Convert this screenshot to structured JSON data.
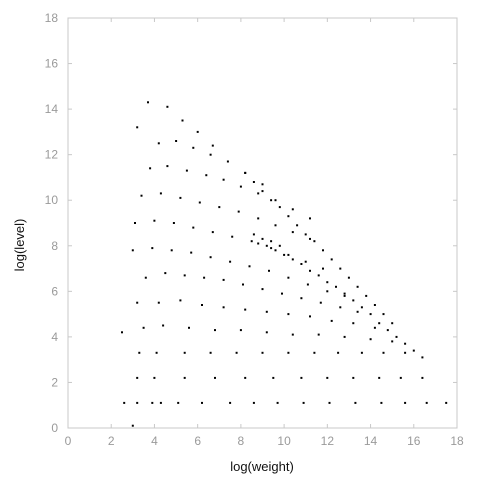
{
  "chart_data": {
    "type": "scatter",
    "title": "",
    "xlabel": "log(weight)",
    "ylabel": "log(level)",
    "xlim": [
      0,
      18
    ],
    "ylim": [
      0,
      18
    ],
    "x_ticks": [
      "0",
      "2",
      "4",
      "6",
      "8",
      "10",
      "12",
      "14",
      "16",
      "18"
    ],
    "y_ticks": [
      "0",
      "2",
      "4",
      "6",
      "8",
      "10",
      "12",
      "14",
      "16",
      "18"
    ],
    "grid": false,
    "legend": "none",
    "series": [
      {
        "points": [
          [
            3.0,
            0.1
          ],
          [
            2.6,
            1.1
          ],
          [
            3.2,
            1.1
          ],
          [
            3.9,
            1.1
          ],
          [
            4.3,
            1.1
          ],
          [
            5.1,
            1.1
          ],
          [
            6.2,
            1.1
          ],
          [
            7.5,
            1.1
          ],
          [
            8.6,
            1.1
          ],
          [
            9.7,
            1.1
          ],
          [
            10.9,
            1.1
          ],
          [
            12.1,
            1.1
          ],
          [
            13.3,
            1.1
          ],
          [
            14.5,
            1.1
          ],
          [
            15.6,
            1.1
          ],
          [
            16.6,
            1.1
          ],
          [
            17.5,
            1.1
          ],
          [
            3.2,
            2.2
          ],
          [
            4.0,
            2.2
          ],
          [
            5.4,
            2.2
          ],
          [
            6.8,
            2.2
          ],
          [
            8.2,
            2.2
          ],
          [
            9.5,
            2.2
          ],
          [
            10.8,
            2.2
          ],
          [
            12.0,
            2.2
          ],
          [
            13.2,
            2.2
          ],
          [
            14.4,
            2.2
          ],
          [
            15.4,
            2.2
          ],
          [
            16.4,
            2.2
          ],
          [
            3.3,
            3.3
          ],
          [
            4.1,
            3.3
          ],
          [
            5.4,
            3.3
          ],
          [
            6.6,
            3.3
          ],
          [
            7.8,
            3.3
          ],
          [
            9.0,
            3.3
          ],
          [
            10.2,
            3.3
          ],
          [
            11.4,
            3.3
          ],
          [
            12.5,
            3.3
          ],
          [
            13.6,
            3.3
          ],
          [
            14.6,
            3.3
          ],
          [
            15.6,
            3.3
          ],
          [
            2.5,
            4.2
          ],
          [
            3.5,
            4.4
          ],
          [
            4.4,
            4.5
          ],
          [
            5.6,
            4.4
          ],
          [
            6.8,
            4.3
          ],
          [
            8.0,
            4.3
          ],
          [
            9.2,
            4.2
          ],
          [
            10.4,
            4.1
          ],
          [
            11.6,
            4.1
          ],
          [
            12.8,
            4.0
          ],
          [
            14.0,
            3.9
          ],
          [
            15.0,
            3.8
          ],
          [
            3.2,
            5.5
          ],
          [
            4.2,
            5.5
          ],
          [
            5.2,
            5.6
          ],
          [
            6.2,
            5.4
          ],
          [
            7.2,
            5.3
          ],
          [
            8.2,
            5.2
          ],
          [
            9.2,
            5.1
          ],
          [
            10.2,
            5.0
          ],
          [
            11.2,
            4.9
          ],
          [
            12.2,
            4.7
          ],
          [
            13.2,
            4.6
          ],
          [
            14.2,
            4.4
          ],
          [
            3.6,
            6.6
          ],
          [
            4.5,
            6.8
          ],
          [
            5.4,
            6.7
          ],
          [
            6.3,
            6.6
          ],
          [
            7.2,
            6.5
          ],
          [
            8.1,
            6.3
          ],
          [
            9.0,
            6.1
          ],
          [
            9.9,
            5.9
          ],
          [
            10.8,
            5.7
          ],
          [
            11.7,
            5.5
          ],
          [
            12.6,
            5.3
          ],
          [
            13.4,
            5.1
          ],
          [
            3.0,
            7.8
          ],
          [
            3.9,
            7.9
          ],
          [
            4.8,
            7.8
          ],
          [
            5.7,
            7.7
          ],
          [
            6.6,
            7.5
          ],
          [
            7.5,
            7.3
          ],
          [
            8.4,
            7.1
          ],
          [
            9.3,
            6.9
          ],
          [
            10.2,
            6.6
          ],
          [
            11.1,
            6.3
          ],
          [
            12.0,
            6.0
          ],
          [
            12.8,
            5.8
          ],
          [
            3.1,
            9.0
          ],
          [
            4.0,
            9.1
          ],
          [
            4.9,
            9.0
          ],
          [
            5.8,
            8.8
          ],
          [
            6.7,
            8.6
          ],
          [
            7.6,
            8.4
          ],
          [
            8.5,
            8.2
          ],
          [
            9.4,
            7.9
          ],
          [
            10.2,
            7.6
          ],
          [
            11.0,
            7.3
          ],
          [
            11.8,
            7.0
          ],
          [
            3.4,
            10.2
          ],
          [
            4.3,
            10.3
          ],
          [
            5.2,
            10.1
          ],
          [
            6.1,
            9.9
          ],
          [
            7.0,
            9.7
          ],
          [
            7.9,
            9.5
          ],
          [
            8.8,
            9.2
          ],
          [
            9.6,
            8.9
          ],
          [
            10.4,
            8.6
          ],
          [
            11.2,
            8.3
          ],
          [
            3.8,
            11.4
          ],
          [
            4.6,
            11.5
          ],
          [
            5.5,
            11.3
          ],
          [
            6.4,
            11.1
          ],
          [
            7.2,
            10.9
          ],
          [
            8.0,
            10.6
          ],
          [
            8.8,
            10.3
          ],
          [
            9.6,
            10.0
          ],
          [
            10.4,
            9.6
          ],
          [
            11.2,
            9.2
          ],
          [
            3.2,
            13.2
          ],
          [
            4.2,
            12.5
          ],
          [
            5.0,
            12.6
          ],
          [
            5.8,
            12.3
          ],
          [
            6.6,
            12.0
          ],
          [
            7.4,
            11.7
          ],
          [
            8.2,
            11.2
          ],
          [
            9.0,
            10.7
          ],
          [
            3.7,
            14.3
          ],
          [
            4.6,
            14.1
          ],
          [
            5.3,
            13.5
          ],
          [
            6.0,
            13.0
          ],
          [
            6.7,
            12.4
          ],
          [
            8.8,
            8.1
          ],
          [
            9.2,
            8.0
          ],
          [
            9.6,
            7.8
          ],
          [
            10.0,
            7.6
          ],
          [
            8.6,
            8.5
          ],
          [
            9.0,
            8.3
          ],
          [
            9.4,
            8.2
          ],
          [
            9.8,
            8.0
          ],
          [
            10.4,
            7.4
          ],
          [
            10.8,
            7.2
          ],
          [
            11.2,
            6.9
          ],
          [
            11.6,
            6.7
          ],
          [
            12.0,
            6.4
          ],
          [
            12.4,
            6.2
          ],
          [
            12.8,
            5.9
          ],
          [
            13.2,
            5.6
          ],
          [
            13.6,
            5.3
          ],
          [
            14.0,
            5.0
          ],
          [
            14.4,
            4.6
          ],
          [
            14.8,
            4.3
          ],
          [
            15.2,
            4.0
          ],
          [
            15.6,
            3.7
          ],
          [
            16.0,
            3.4
          ],
          [
            16.4,
            3.1
          ],
          [
            8.2,
            11.2
          ],
          [
            8.6,
            10.8
          ],
          [
            9.0,
            10.4
          ],
          [
            9.4,
            10.0
          ],
          [
            9.8,
            9.7
          ],
          [
            10.2,
            9.3
          ],
          [
            10.6,
            8.9
          ],
          [
            11.0,
            8.5
          ],
          [
            11.4,
            8.2
          ],
          [
            11.8,
            7.8
          ],
          [
            12.2,
            7.4
          ],
          [
            12.6,
            7.0
          ],
          [
            13.0,
            6.6
          ],
          [
            13.4,
            6.2
          ],
          [
            13.8,
            5.8
          ],
          [
            14.2,
            5.4
          ],
          [
            14.6,
            5.0
          ],
          [
            15.0,
            4.6
          ]
        ]
      }
    ]
  }
}
